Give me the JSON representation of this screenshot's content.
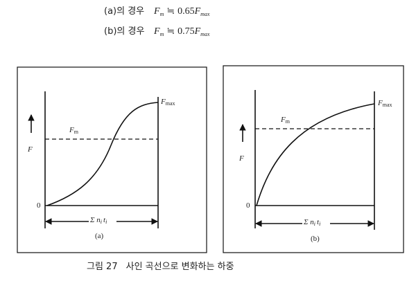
{
  "formulas": [
    {
      "case": "(a)의 경우",
      "lhs": "F",
      "lhs_sub": "m",
      "relation": "≒",
      "coefficient": "0.65",
      "rhs": "F",
      "rhs_sub": "max"
    },
    {
      "case": "(b)의 경우",
      "lhs": "F",
      "lhs_sub": "m",
      "relation": "≒",
      "coefficient": "0.75",
      "rhs": "F",
      "rhs_sub": "max"
    }
  ],
  "panels": [
    {
      "label": "(a)",
      "y_axis": "F",
      "origin": "0",
      "fmax": "F",
      "fmax_sub": "max",
      "fm": "F",
      "fm_sub": "m",
      "x_axis": "Σ n",
      "x_axis_sub": "i",
      "x_axis2": "t",
      "x_axis2_sub": "i"
    },
    {
      "label": "(b)",
      "y_axis": "F",
      "origin": "0",
      "fmax": "F",
      "fmax_sub": "max",
      "fm": "F",
      "fm_sub": "m",
      "x_axis": "Σ n",
      "x_axis_sub": "i",
      "x_axis2": "t",
      "x_axis2_sub": "i"
    }
  ],
  "caption": {
    "figure": "그림 27",
    "title": "사인 곡선으로 변화하는 하중"
  }
}
